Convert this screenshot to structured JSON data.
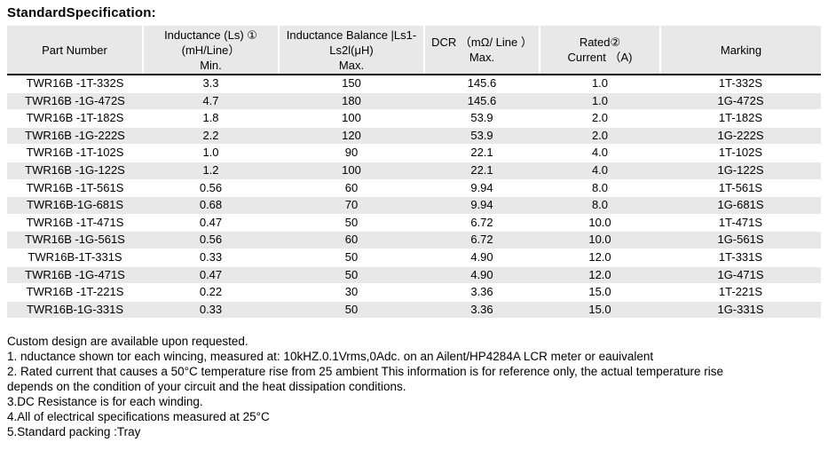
{
  "title": "StandardSpecification:",
  "colors": {
    "header_bg": "#e8e8e8",
    "row_alt_bg": "#e8e8e8",
    "header_rule": "#000000",
    "text": "#000000"
  },
  "table": {
    "columns": [
      {
        "label": "Part Number"
      },
      {
        "label": "Inductance (Ls) ①\n(mH/Line）\nMin."
      },
      {
        "label": "Inductance Balance |Ls1-\nLs2l(μH)\nMax."
      },
      {
        "label": "DCR （mΩ/ Line ）\nMax."
      },
      {
        "label": "Rated②\nCurrent （A)"
      },
      {
        "label": "Marking"
      }
    ],
    "rows": [
      [
        "TWR16B -1T-332S",
        "3.3",
        "150",
        "145.6",
        "1.0",
        "1T-332S"
      ],
      [
        "TWR16B -1G-472S",
        "4.7",
        "180",
        "145.6",
        "1.0",
        "1G-472S"
      ],
      [
        "TWR16B -1T-182S",
        "1.8",
        "100",
        "53.9",
        "2.0",
        "1T-182S"
      ],
      [
        "TWR16B -1G-222S",
        "2.2",
        "120",
        "53.9",
        "2.0",
        "1G-222S"
      ],
      [
        "TWR16B -1T-102S",
        "1.0",
        "90",
        "22.1",
        "4.0",
        "1T-102S"
      ],
      [
        "TWR16B -1G-122S",
        "1.2",
        "100",
        "22.1",
        "4.0",
        "1G-122S"
      ],
      [
        "TWR16B -1T-561S",
        "0.56",
        "60",
        "9.94",
        "8.0",
        "1T-561S"
      ],
      [
        "TWR16B-1G-681S",
        "0.68",
        "70",
        "9.94",
        "8.0",
        "1G-681S"
      ],
      [
        "TWR16B -1T-471S",
        "0.47",
        "50",
        "6.72",
        "10.0",
        "1T-471S"
      ],
      [
        "TWR16B -1G-561S",
        "0.56",
        "60",
        "6.72",
        "10.0",
        "1G-561S"
      ],
      [
        "TWR16B-1T-331S",
        "0.33",
        "50",
        "4.90",
        "12.0",
        "1T-331S"
      ],
      [
        "TWR16B -1G-471S",
        "0.47",
        "50",
        "4.90",
        "12.0",
        "1G-471S"
      ],
      [
        "TWR16B -1T-221S",
        "0.22",
        "30",
        "3.36",
        "15.0",
        "1T-221S"
      ],
      [
        "TWR16B-1G-331S",
        "0.33",
        "50",
        "3.36",
        "15.0",
        "1G-331S"
      ]
    ]
  },
  "notes": [
    "Custom design are available upon requested.",
    "1. nductance shown tor each wincing, measured at: 10kHZ.0.1Vrms,0Adc. on an Ailent/HP4284A LCR meter or eauivalent",
    "2. Rated current that causes a 50°C temperature rise from 25 ambient This information is for reference only, the actual temperature rise",
    "depends on the condition of your circuit and the heat dissipation conditions.",
    "3.DC Resistance is for each winding.",
    "4.All of electrical specifications measured at 25°C",
    "5.Standard packing :Tray"
  ]
}
